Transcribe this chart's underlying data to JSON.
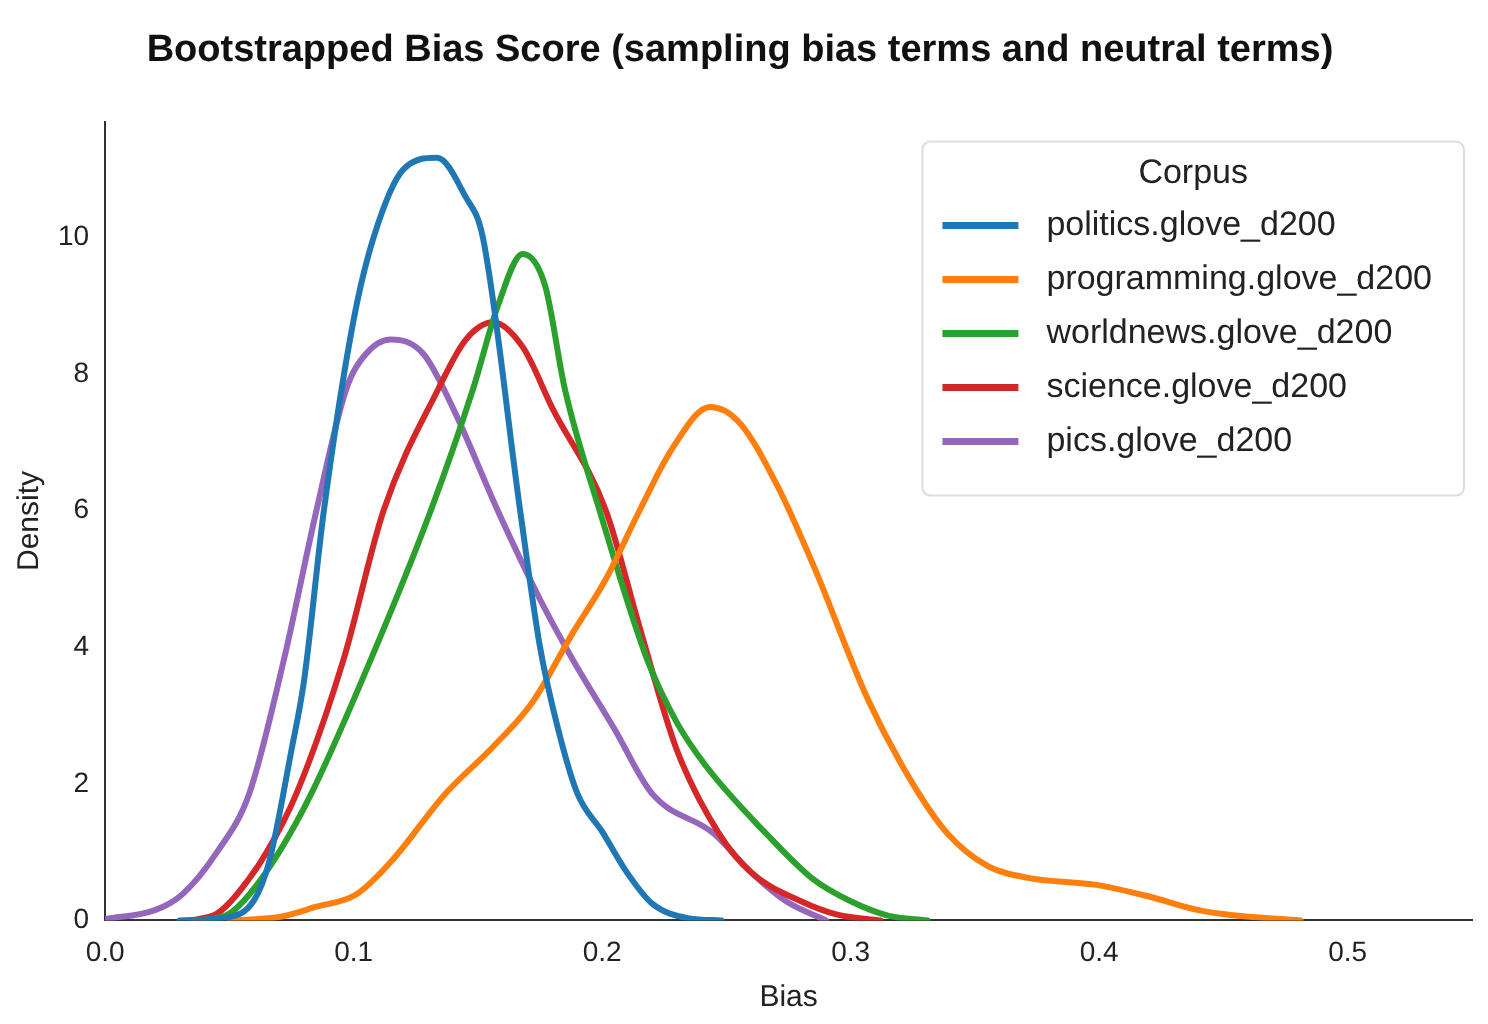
{
  "chart_data": {
    "type": "line",
    "title": "Bootstrapped Bias Score (sampling bias terms and neutral terms)",
    "xlabel": "Bias",
    "ylabel": "Density",
    "legend_title": "Corpus",
    "legend": "top right",
    "grid": false,
    "marker": "none",
    "line_style": "solid",
    "xlim": [
      0,
      0.55
    ],
    "ylim": [
      0,
      11.7
    ],
    "xticks": [
      {
        "value": 0,
        "label": "0.0"
      },
      {
        "value": 0.1,
        "label": "0.1"
      },
      {
        "value": 0.2,
        "label": "0.2"
      },
      {
        "value": 0.3,
        "label": "0.3"
      },
      {
        "value": 0.4,
        "label": "0.4"
      },
      {
        "value": 0.5,
        "label": "0.5"
      }
    ],
    "yticks": [
      0,
      2,
      4,
      6,
      8,
      10
    ],
    "series": [
      {
        "name": "politics.glove_d200",
        "color": "#1f77b4",
        "x": [
          0.03,
          0.05,
          0.06,
          0.066,
          0.075,
          0.08,
          0.088,
          0.1,
          0.108,
          0.12,
          0.1335,
          0.145,
          0.152,
          0.167,
          0.175,
          0.182,
          0.19,
          0.2,
          0.21,
          0.22,
          0.235,
          0.248
        ],
        "values": [
          0,
          0.05,
          0.3,
          0.86,
          2.5,
          3.5,
          6,
          8.8,
          10,
          11,
          11.17,
          10.6,
          10,
          6,
          4,
          2.84,
          1.86,
          1.3,
          0.7,
          0.25,
          0.03,
          0
        ]
      },
      {
        "name": "programming.glove_d200",
        "color": "#ff7f0e",
        "x": [
          0.05,
          0.07,
          0.085,
          0.101,
          0.115,
          0.137,
          0.156,
          0.172,
          0.188,
          0.2015,
          0.215,
          0.228,
          0.2434,
          0.255,
          0.27,
          0.285,
          0.307,
          0.325,
          0.339,
          0.355,
          0.372,
          0.399,
          0.42,
          0.44,
          0.453,
          0.481
        ],
        "values": [
          0,
          0.05,
          0.2,
          0.38,
          0.86,
          1.86,
          2.54,
          3.2,
          4.2,
          5.0,
          6.0,
          6.9,
          7.52,
          7.3,
          6.4,
          5.2,
          3.23,
          2.0,
          1.27,
          0.8,
          0.62,
          0.52,
          0.35,
          0.15,
          0.08,
          0
        ]
      },
      {
        "name": "worldnews.glove_d200",
        "color": "#2ca02c",
        "x": [
          0.04,
          0.05,
          0.058,
          0.07,
          0.083,
          0.107,
          0.131,
          0.148,
          0.158,
          0.168,
          0.177,
          0.185,
          0.199,
          0.218,
          0.23,
          0.242,
          0.266,
          0.285,
          0.3,
          0.315,
          0.331
        ],
        "values": [
          0,
          0.1,
          0.38,
          1,
          1.86,
          3.83,
          6,
          7.78,
          9,
          9.76,
          9.3,
          7.78,
          6,
          3.83,
          2.9,
          2.25,
          1.27,
          0.6,
          0.28,
          0.07,
          0
        ]
      },
      {
        "name": "science.glove_d200",
        "color": "#d62728",
        "x": [
          0.035,
          0.045,
          0.053,
          0.065,
          0.077,
          0.096,
          0.112,
          0.134,
          0.145,
          0.156,
          0.168,
          0.18,
          0.2015,
          0.215,
          0.23,
          0.247,
          0.26,
          0.28,
          0.295,
          0.312
        ],
        "values": [
          0,
          0.1,
          0.38,
          1,
          1.86,
          3.83,
          6,
          7.78,
          8.5,
          8.76,
          8.4,
          7.5,
          6,
          4.3,
          2.5,
          1.27,
          0.7,
          0.28,
          0.08,
          0
        ]
      },
      {
        "name": "pics.glove_d200",
        "color": "#9467bd",
        "x": [
          0,
          0.02,
          0.031,
          0.045,
          0.058,
          0.072,
          0.085,
          0.097,
          0.105,
          0.115,
          0.128,
          0.14,
          0.158,
          0.175,
          0.188,
          0.205,
          0.22,
          0.245,
          0.26,
          0.274,
          0.29
        ],
        "values": [
          0.02,
          0.15,
          0.38,
          1,
          1.86,
          3.83,
          6,
          7.78,
          8.3,
          8.51,
          8.3,
          7.5,
          6,
          4.7,
          3.83,
          2.8,
          1.86,
          1.27,
          0.7,
          0.28,
          0
        ]
      }
    ]
  }
}
